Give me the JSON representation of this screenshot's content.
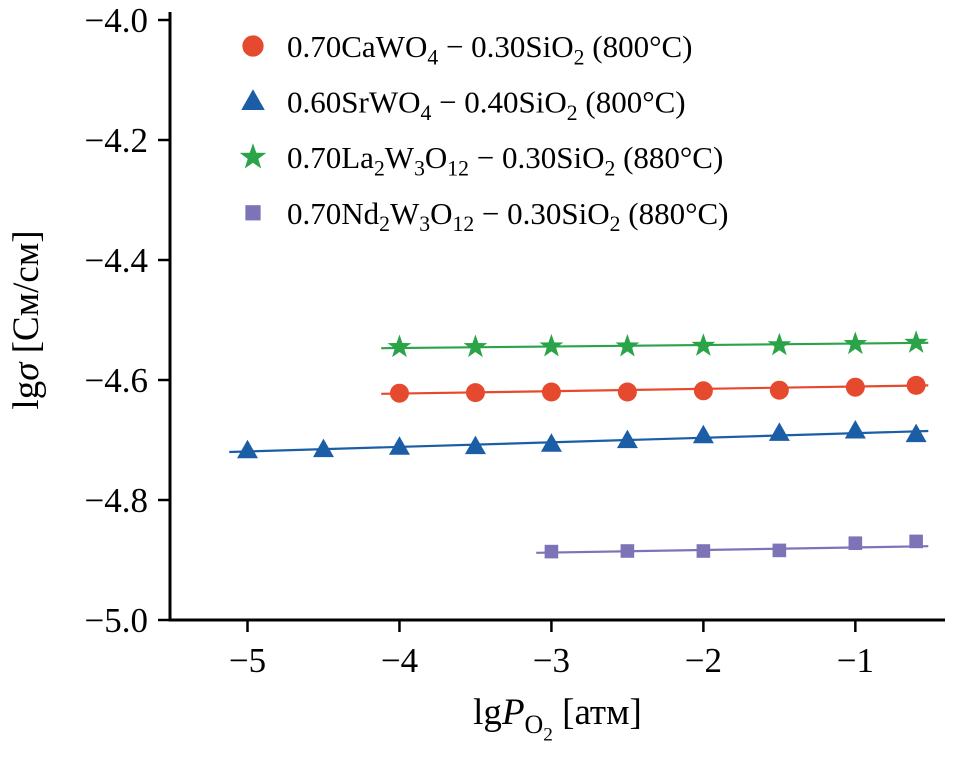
{
  "figure": {
    "description_visible": false
  },
  "chart_data": {
    "type": "scatter",
    "title": "",
    "xlabel_plain": "lgP_O2 [атм]",
    "ylabel_plain": "lgσ [См/см]",
    "xlabel_parts": [
      {
        "t": "lg"
      },
      {
        "i": "P"
      },
      {
        "sub": "O"
      },
      {
        "sub2": "2"
      },
      {
        "t": " [атм]"
      }
    ],
    "ylabel_parts": [
      {
        "t": "lg"
      },
      {
        "i": "σ"
      },
      {
        "t": " [См/см]"
      }
    ],
    "xlim": [
      -5.51,
      -0.41
    ],
    "ylim": [
      -5.0,
      -4.0
    ],
    "xticks": {
      "values": [
        -5,
        -4,
        -3,
        -2,
        -1
      ],
      "labels": [
        "−5",
        "−4",
        "−3",
        "−2",
        "−1"
      ]
    },
    "yticks": {
      "values": [
        -5.0,
        -4.8,
        -4.6,
        -4.4,
        -4.2,
        -4.0
      ],
      "labels": [
        "−5.0",
        "−4.8",
        "−4.6",
        "−4.4",
        "−4.2",
        "−4.0"
      ]
    },
    "grid": false,
    "legend_position": "top-left-inside",
    "axis_color": "#000000",
    "series": [
      {
        "name": "0.70CaWO4 − 0.30SiO2 (800°C)",
        "label_parts": [
          {
            "t": "0.70CaWO"
          },
          {
            "sub": "4"
          },
          {
            "t": " − 0.30SiO"
          },
          {
            "sub": "2"
          },
          {
            "t": " (800°C)"
          }
        ],
        "marker": "circle",
        "color": "#e64a2e",
        "points": [
          [
            -4.0,
            -4.622
          ],
          [
            -3.5,
            -4.621
          ],
          [
            -3.0,
            -4.62
          ],
          [
            -2.5,
            -4.62
          ],
          [
            -2.0,
            -4.618
          ],
          [
            -1.5,
            -4.617
          ],
          [
            -1.0,
            -4.612
          ],
          [
            -0.6,
            -4.609
          ]
        ],
        "trend": {
          "x1": -4.12,
          "y1": -4.623,
          "x2": -0.52,
          "y2": -4.609
        }
      },
      {
        "name": "0.60SrWO4 − 0.40SiO2 (800°C)",
        "label_parts": [
          {
            "t": "0.60SrWO"
          },
          {
            "sub": "4"
          },
          {
            "t": " − 0.40SiO"
          },
          {
            "sub": "2"
          },
          {
            "t": " (800°C)"
          }
        ],
        "marker": "triangle",
        "color": "#1b5ea6",
        "points": [
          [
            -5.0,
            -4.718
          ],
          [
            -4.5,
            -4.716
          ],
          [
            -4.0,
            -4.712
          ],
          [
            -3.5,
            -4.711
          ],
          [
            -3.0,
            -4.707
          ],
          [
            -2.5,
            -4.701
          ],
          [
            -2.0,
            -4.693
          ],
          [
            -1.5,
            -4.689
          ],
          [
            -1.0,
            -4.685
          ],
          [
            -0.6,
            -4.691
          ]
        ],
        "trend": {
          "x1": -5.12,
          "y1": -4.72,
          "x2": -0.52,
          "y2": -4.685
        }
      },
      {
        "name": "0.70La2W3O12 − 0.30SiO2 (880°C)",
        "label_parts": [
          {
            "t": "0.70La"
          },
          {
            "sub": "2"
          },
          {
            "t": "W"
          },
          {
            "sub": "3"
          },
          {
            "t": "O"
          },
          {
            "sub": "12"
          },
          {
            "t": " − 0.30SiO"
          },
          {
            "sub": "2"
          },
          {
            "t": " (880°C)"
          }
        ],
        "marker": "star",
        "color": "#2aa349",
        "points": [
          [
            -4.0,
            -4.545
          ],
          [
            -3.5,
            -4.545
          ],
          [
            -3.0,
            -4.544
          ],
          [
            -2.5,
            -4.544
          ],
          [
            -2.0,
            -4.543
          ],
          [
            -1.5,
            -4.542
          ],
          [
            -1.0,
            -4.54
          ],
          [
            -0.6,
            -4.538
          ]
        ],
        "trend": {
          "x1": -4.12,
          "y1": -4.547,
          "x2": -0.52,
          "y2": -4.538
        }
      },
      {
        "name": "0.70Nd2W3O12 − 0.30SiO2 (880°C)",
        "label_parts": [
          {
            "t": "0.70Nd"
          },
          {
            "sub": "2"
          },
          {
            "t": "W"
          },
          {
            "sub": "3"
          },
          {
            "t": "O"
          },
          {
            "sub": "12"
          },
          {
            "t": " − 0.30SiO"
          },
          {
            "sub": "2"
          },
          {
            "t": " (880°C)"
          }
        ],
        "marker": "square",
        "color": "#7d74b8",
        "points": [
          [
            -3.0,
            -4.886
          ],
          [
            -2.5,
            -4.885
          ],
          [
            -2.0,
            -4.885
          ],
          [
            -1.5,
            -4.884
          ],
          [
            -1.0,
            -4.872
          ],
          [
            -0.6,
            -4.869
          ]
        ],
        "trend": {
          "x1": -3.1,
          "y1": -4.888,
          "x2": -0.52,
          "y2": -4.877
        }
      }
    ]
  }
}
